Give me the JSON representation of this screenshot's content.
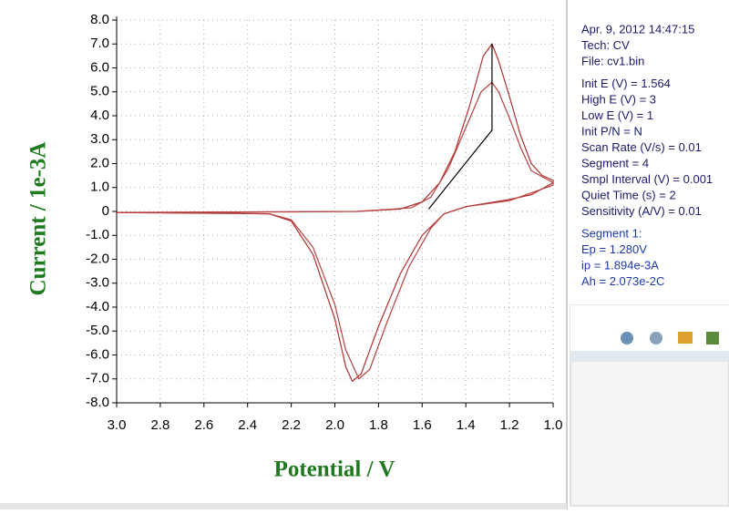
{
  "chart_data": {
    "type": "line",
    "xlabel": "Potential / V",
    "ylabel": "Current / 1e-3A",
    "xlim": [
      3.0,
      1.0
    ],
    "xticks": [
      {
        "value": 3.0,
        "label": "3.0"
      },
      2.8,
      2.6,
      2.4,
      2.2,
      {
        "value": 2.0,
        "label": "2.0"
      },
      1.8,
      1.6,
      1.4,
      1.2,
      {
        "value": 1.0,
        "label": "1.0"
      }
    ],
    "ylim": [
      -8.0,
      8.0
    ],
    "yticks": [
      {
        "value": 8,
        "label": "8.0"
      },
      {
        "value": 7,
        "label": "7.0"
      },
      {
        "value": 6,
        "label": "6.0"
      },
      {
        "value": 5,
        "label": "5.0"
      },
      {
        "value": 4,
        "label": "4.0"
      },
      {
        "value": 3,
        "label": "3.0"
      },
      {
        "value": 2,
        "label": "2.0"
      },
      {
        "value": 1,
        "label": "1.0"
      },
      0,
      {
        "value": -1,
        "label": "-1.0"
      },
      {
        "value": -2,
        "label": "-2.0"
      },
      {
        "value": -3,
        "label": "-3.0"
      },
      {
        "value": -4,
        "label": "-4.0"
      },
      {
        "value": -5,
        "label": "-5.0"
      },
      {
        "value": -6,
        "label": "-6.0"
      },
      {
        "value": -7,
        "label": "-7.0"
      },
      {
        "value": -8,
        "label": "-8.0"
      }
    ],
    "grid": true,
    "series": [
      {
        "color": "#b03030",
        "x": [
          3.0,
          2.6,
          2.3,
          2.2,
          2.1,
          2.0,
          1.95,
          1.92,
          1.88,
          1.8,
          1.7,
          1.6,
          1.5,
          1.4,
          1.3,
          1.2,
          1.1,
          1.0,
          1.0,
          1.05,
          1.1,
          1.15,
          1.2,
          1.25,
          1.28,
          1.32,
          1.38,
          1.45,
          1.52,
          1.6,
          1.7,
          1.9,
          2.2,
          2.6,
          3.0
        ],
        "values": [
          -0.05,
          -0.05,
          -0.1,
          -0.4,
          -1.8,
          -4.5,
          -6.5,
          -7.1,
          -6.8,
          -4.8,
          -2.6,
          -1.0,
          -0.1,
          0.2,
          0.35,
          0.5,
          0.7,
          1.2,
          1.3,
          1.5,
          2.0,
          3.2,
          4.8,
          6.3,
          7.0,
          6.5,
          4.5,
          2.5,
          1.2,
          0.4,
          0.1,
          0.0,
          -0.02,
          -0.03,
          -0.05
        ]
      },
      {
        "color": "#b84040",
        "x": [
          3.0,
          2.3,
          2.2,
          2.1,
          2.0,
          1.95,
          1.89,
          1.84,
          1.76,
          1.66,
          1.56,
          1.5,
          1.4,
          1.2,
          1.0,
          1.0,
          1.1,
          1.15,
          1.2,
          1.25,
          1.28,
          1.33,
          1.4,
          1.48,
          1.56,
          1.65,
          1.9,
          3.0
        ],
        "values": [
          -0.05,
          -0.1,
          -0.35,
          -1.5,
          -3.9,
          -5.8,
          -7.0,
          -6.6,
          -4.6,
          -2.3,
          -0.7,
          -0.1,
          0.2,
          0.45,
          1.1,
          1.2,
          1.7,
          2.7,
          3.9,
          5.0,
          5.4,
          5.0,
          3.5,
          1.8,
          0.6,
          0.15,
          0.0,
          -0.04
        ]
      },
      {
        "color": "#000000",
        "x": [
          1.57,
          1.28,
          1.28
        ],
        "values": [
          0.1,
          3.4,
          7.0
        ]
      }
    ]
  },
  "info": {
    "header": [
      "Apr. 9, 2012   14:47:15",
      "Tech: CV",
      "File: cv1.bin"
    ],
    "params": [
      "Init E (V) = 1.564",
      "High E (V) = 3",
      "Low E (V) = 1",
      "Init P/N = N",
      "Scan Rate (V/s) = 0.01",
      "Segment = 4",
      "Smpl Interval (V) = 0.001",
      "Quiet Time (s) = 2",
      "Sensitivity (A/V) = 0.01"
    ],
    "results": [
      "Segment 1:",
      "Ep = 1.280V",
      "ip = 1.894e-3A",
      "Ah = 2.073e-2C"
    ]
  }
}
